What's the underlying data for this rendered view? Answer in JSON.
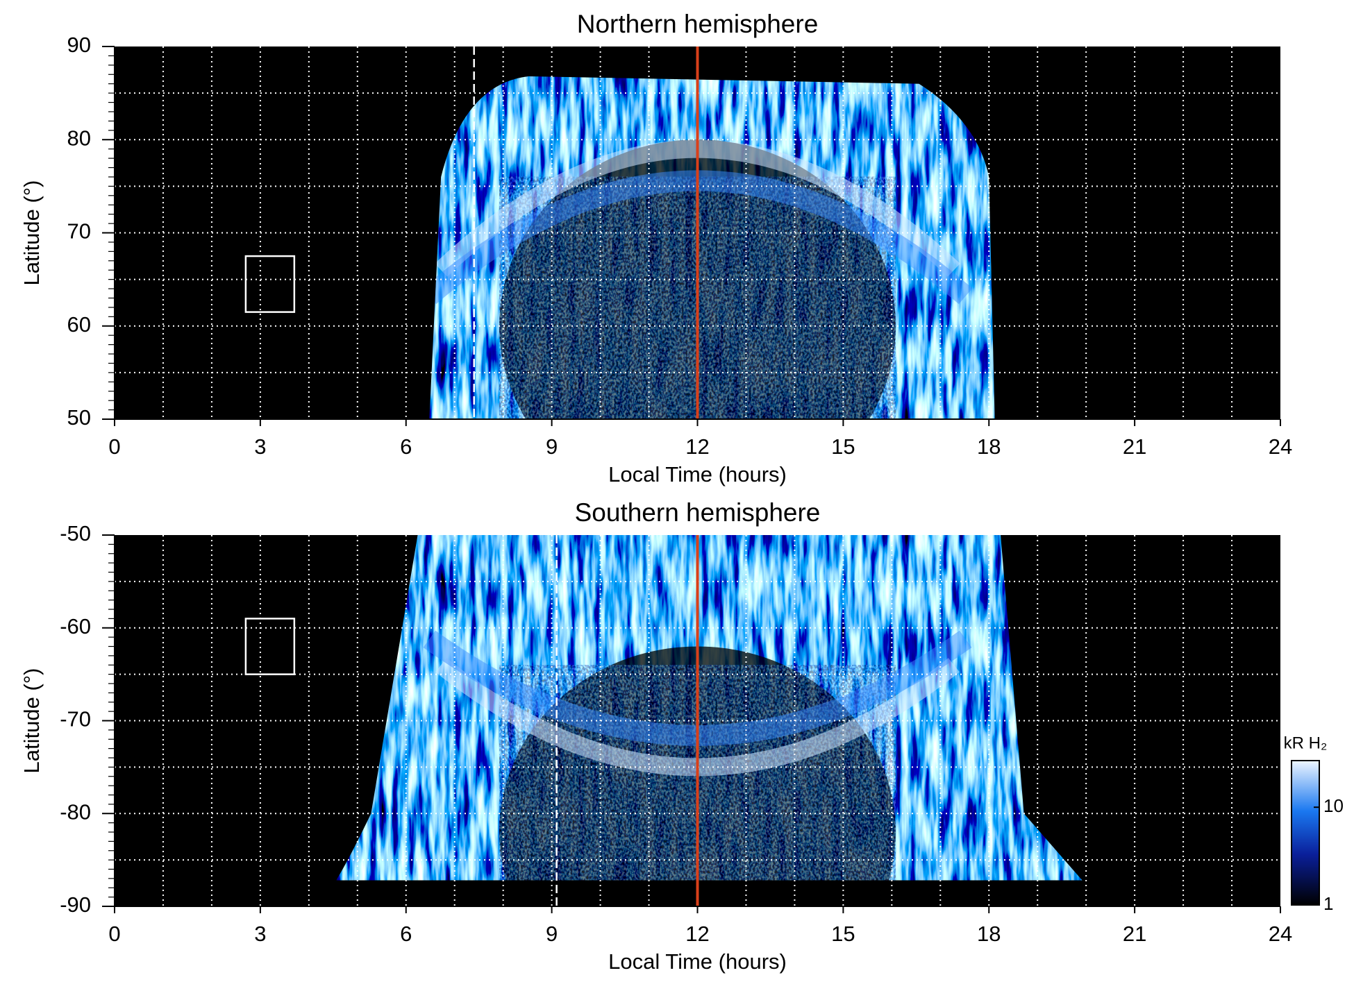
{
  "chart_data": [
    {
      "type": "heatmap",
      "title": "Northern hemisphere",
      "xlabel": "Local Time (hours)",
      "ylabel": "Latitude (°)",
      "xlim": [
        0,
        24
      ],
      "xticks": [
        0,
        3,
        6,
        9,
        12,
        15,
        18,
        21,
        24
      ],
      "ylim": [
        50,
        90
      ],
      "yticks": [
        50,
        60,
        70,
        80,
        90
      ],
      "yminorticks": [
        51,
        52,
        53,
        54,
        55,
        56,
        57,
        58,
        59,
        61,
        62,
        63,
        64,
        65,
        66,
        67,
        68,
        69,
        71,
        72,
        73,
        74,
        75,
        76,
        77,
        78,
        79,
        81,
        82,
        83,
        84,
        85,
        86,
        87,
        88,
        89
      ],
      "xgrid": [
        1,
        2,
        3,
        4,
        5,
        6,
        7,
        8,
        9,
        10,
        11,
        12,
        13,
        14,
        15,
        16,
        17,
        18,
        19,
        20,
        21,
        22,
        23
      ],
      "ygrid": [
        55,
        60,
        65,
        70,
        75,
        80,
        85
      ],
      "reference_lines": [
        {
          "x": 12,
          "color": "#d9401a",
          "style": "solid"
        },
        {
          "x": 7.4,
          "color": "#ffffff",
          "style": "dashed"
        }
      ],
      "boxes": [
        {
          "x": [
            2.7,
            3.7
          ],
          "y": [
            61.5,
            67.5
          ]
        }
      ]
    },
    {
      "type": "heatmap",
      "title": "Southern hemisphere",
      "xlabel": "Local Time (hours)",
      "ylabel": "Latitude (°)",
      "xlim": [
        0,
        24
      ],
      "xticks": [
        0,
        3,
        6,
        9,
        12,
        15,
        18,
        21,
        24
      ],
      "ylim": [
        -90,
        -50
      ],
      "yticks": [
        -90,
        -80,
        -70,
        -60,
        -50
      ],
      "yminorticks": [
        -89,
        -88,
        -87,
        -86,
        -85,
        -84,
        -83,
        -82,
        -81,
        -79,
        -78,
        -77,
        -76,
        -75,
        -74,
        -73,
        -72,
        -71,
        -69,
        -68,
        -67,
        -66,
        -65,
        -64,
        -63,
        -62,
        -61,
        -59,
        -58,
        -57,
        -56,
        -55,
        -54,
        -53,
        -52,
        -51
      ],
      "xgrid": [
        1,
        2,
        3,
        4,
        5,
        6,
        7,
        8,
        9,
        10,
        11,
        12,
        13,
        14,
        15,
        16,
        17,
        18,
        19,
        20,
        21,
        22,
        23
      ],
      "ygrid": [
        -85,
        -80,
        -75,
        -70,
        -65,
        -60,
        -55
      ],
      "reference_lines": [
        {
          "x": 12,
          "color": "#d9401a",
          "style": "solid"
        },
        {
          "x": 9.1,
          "color": "#ffffff",
          "style": "dashed"
        }
      ],
      "boxes": [
        {
          "x": [
            2.7,
            3.7
          ],
          "y": [
            -65,
            -59
          ]
        }
      ],
      "colorbar": {
        "label": "kR H₂",
        "lim": [
          1,
          30
        ],
        "ticks": [
          1,
          10
        ],
        "log": true
      }
    }
  ]
}
